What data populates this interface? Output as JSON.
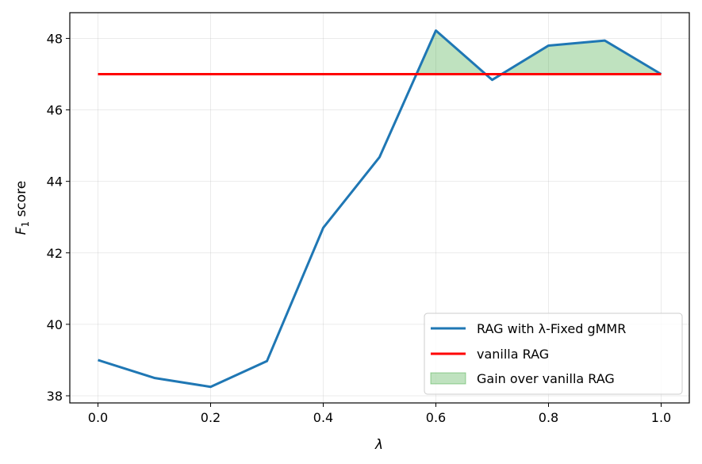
{
  "chart_data": {
    "type": "line",
    "x": [
      0.0,
      0.1,
      0.2,
      0.3,
      0.4,
      0.5,
      0.6,
      0.7,
      0.8,
      0.9,
      1.0
    ],
    "series": [
      {
        "name": "RAG with λ-Fixed gMMR",
        "color": "#1f77b4",
        "values": [
          39.0,
          38.5,
          38.25,
          38.97,
          42.7,
          44.68,
          48.22,
          46.84,
          47.8,
          47.94,
          47.0
        ]
      },
      {
        "name": "vanilla RAG",
        "color": "#ff0000",
        "values": [
          47.0,
          47.0,
          47.0,
          47.0,
          47.0,
          47.0,
          47.0,
          47.0,
          47.0,
          47.0,
          47.0
        ]
      }
    ],
    "fill": {
      "name": "Gain over vanilla RAG",
      "color": "#2ca02c",
      "opacity": 0.3
    },
    "xlabel": "λ",
    "ylabel_main": "F",
    "ylabel_sub": "1",
    "ylabel_rest": " score",
    "xlim": [
      -0.05,
      1.05
    ],
    "ylim": [
      37.8,
      48.72
    ],
    "xticks": [
      0.0,
      0.2,
      0.4,
      0.6,
      0.8,
      1.0
    ],
    "xtick_labels": [
      "0.0",
      "0.2",
      "0.4",
      "0.6",
      "0.8",
      "1.0"
    ],
    "yticks": [
      38,
      40,
      42,
      44,
      46,
      48
    ],
    "ytick_labels": [
      "38",
      "40",
      "42",
      "44",
      "46",
      "48"
    ],
    "grid": true,
    "legend_position": "lower-right"
  }
}
